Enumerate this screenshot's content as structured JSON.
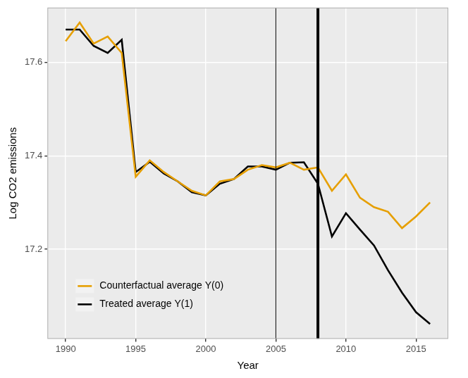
{
  "chart_data": {
    "type": "line",
    "x_label": "Year",
    "y_label": "Log CO2 emissions",
    "x": [
      1990,
      1991,
      1992,
      1993,
      1994,
      1995,
      1996,
      1997,
      1998,
      1999,
      2000,
      2001,
      2002,
      2003,
      2004,
      2005,
      2006,
      2007,
      2008,
      2009,
      2010,
      2011,
      2012,
      2013,
      2014,
      2015,
      2016
    ],
    "series": [
      {
        "name": "Counterfactual average Y(0)",
        "color": "#E69F00",
        "values": [
          17.645,
          17.685,
          17.64,
          17.655,
          17.62,
          17.355,
          17.39,
          17.365,
          17.345,
          17.325,
          17.315,
          17.345,
          17.35,
          17.37,
          17.38,
          17.375,
          17.385,
          17.37,
          17.375,
          17.325,
          17.36,
          17.31,
          17.29,
          17.28,
          17.245,
          17.27,
          17.3
        ]
      },
      {
        "name": "Treated average Y(1)",
        "color": "#000000",
        "values": [
          17.67,
          17.67,
          17.635,
          17.62,
          17.648,
          17.365,
          17.387,
          17.362,
          17.345,
          17.322,
          17.315,
          17.34,
          17.35,
          17.377,
          17.377,
          17.37,
          17.385,
          17.386,
          17.34,
          17.227,
          17.277,
          17.242,
          17.208,
          17.155,
          17.107,
          17.065,
          17.04
        ]
      }
    ],
    "vlines": [
      2005,
      2008
    ],
    "xlim": [
      1988.7,
      2017.3
    ],
    "xticks": [
      1990,
      1995,
      2000,
      2005,
      2010,
      2015
    ],
    "ylim": [
      17.008,
      17.717
    ],
    "yticks": [
      17.2,
      17.4,
      17.6
    ],
    "grid": true,
    "legend": "bottom left"
  }
}
